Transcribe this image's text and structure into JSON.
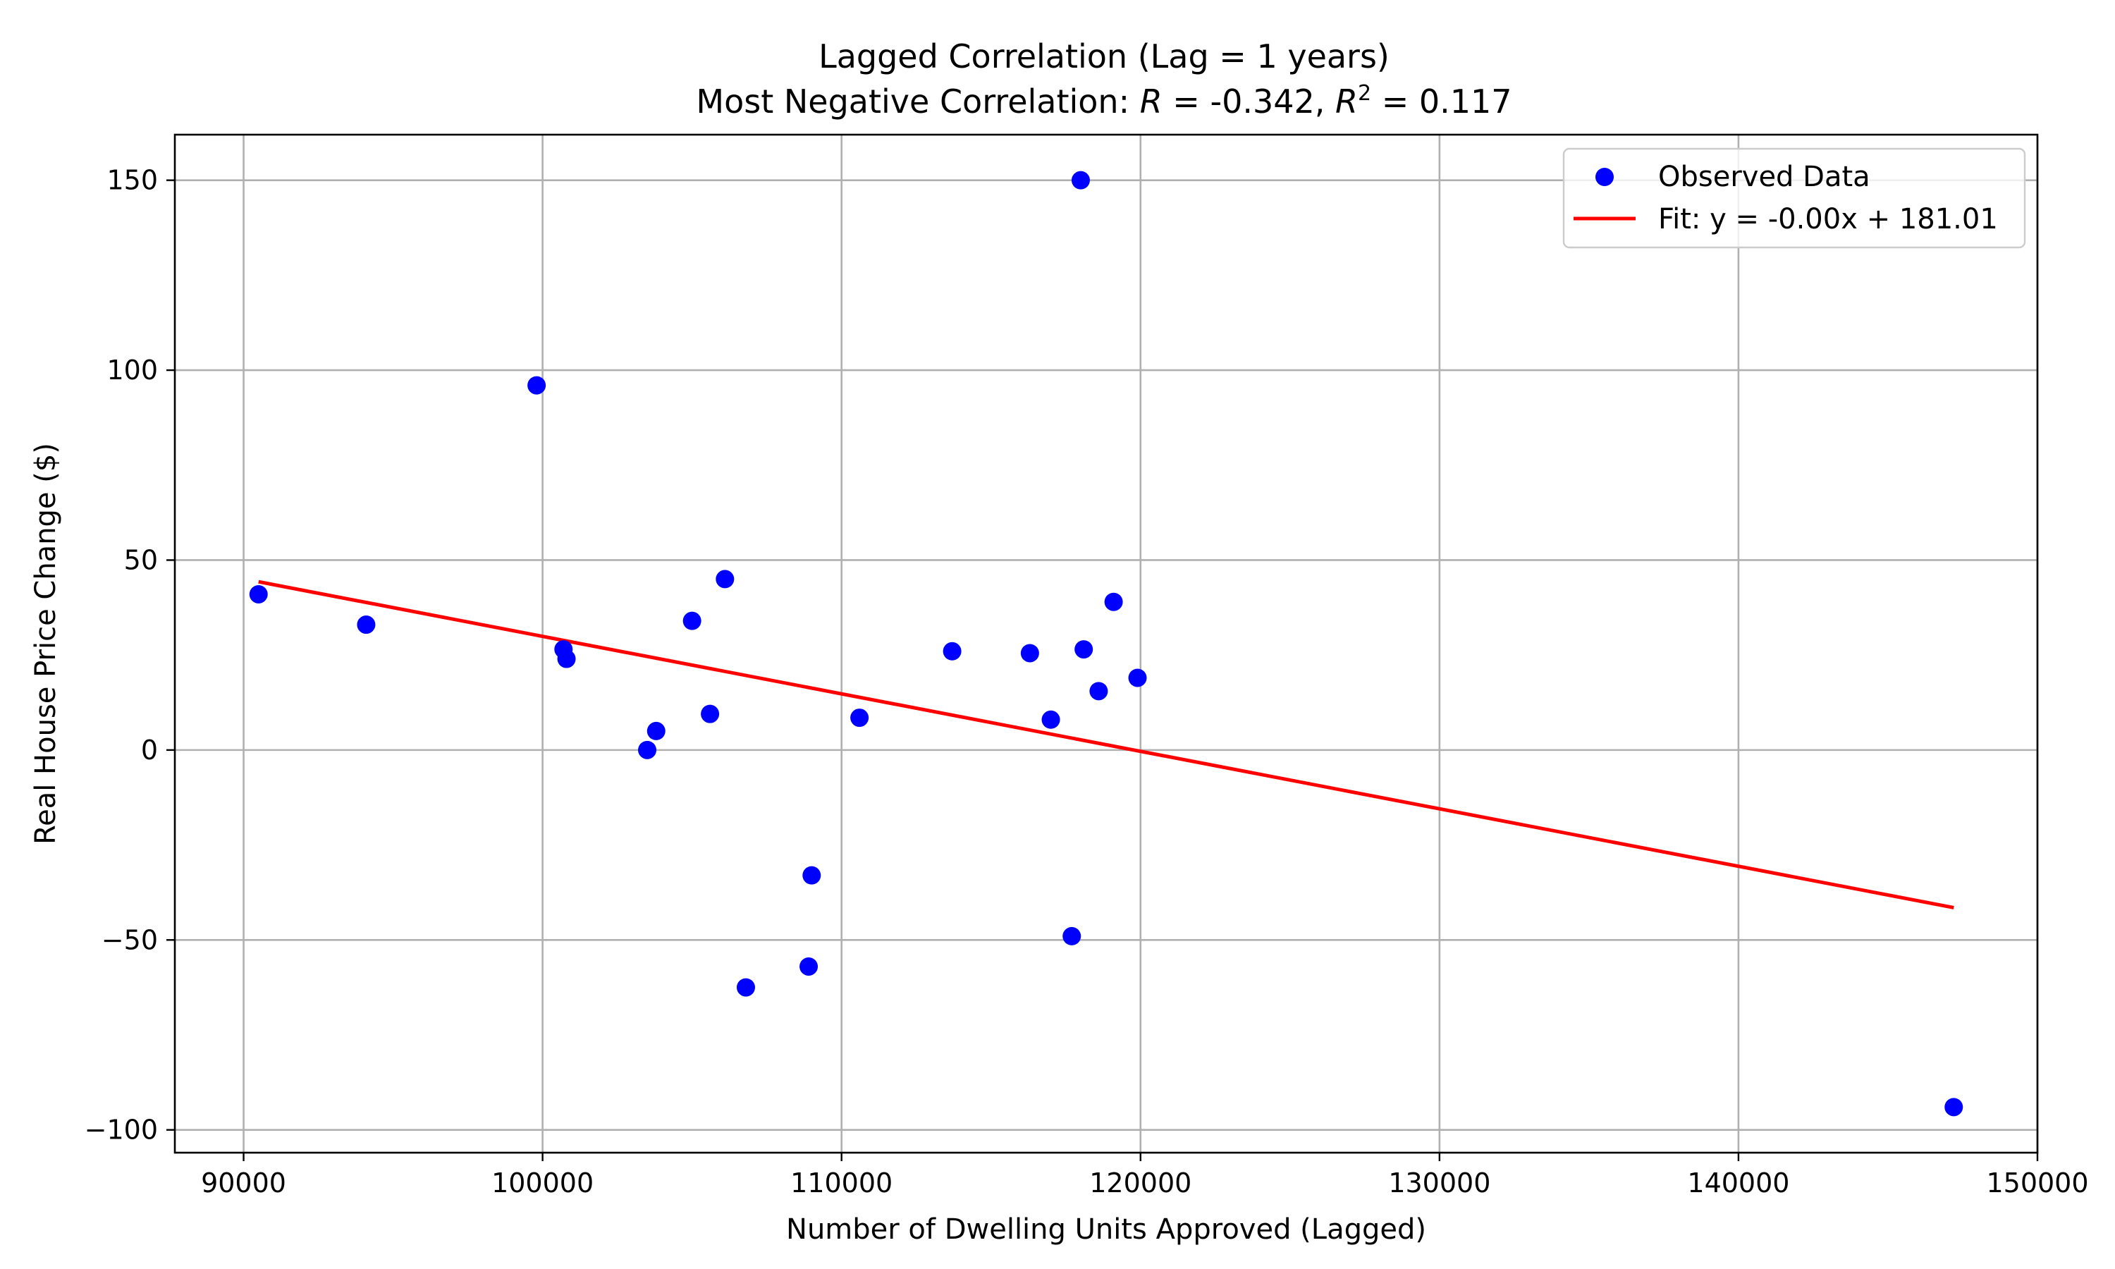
{
  "chart_data": {
    "type": "scatter",
    "title_line1": "Lagged Correlation (Lag = 1 years)",
    "title_line2": {
      "prefix": "Most Negative Correlation: ",
      "r_symbol": "R",
      "r_text": " = -0.342, ",
      "r2_symbol": "R",
      "r2_superscript": "2",
      "r2_text": " = 0.117"
    },
    "xlabel": "Number of Dwelling Units Approved (Lagged)",
    "ylabel": "Real House Price Change ($)",
    "xlim": [
      87700,
      150000
    ],
    "ylim": [
      -106,
      162
    ],
    "xticks": [
      90000,
      100000,
      110000,
      120000,
      130000,
      140000,
      150000
    ],
    "yticks": [
      -100,
      -50,
      0,
      50,
      100,
      150
    ],
    "xtick_labels": [
      "90000",
      "100000",
      "110000",
      "120000",
      "130000",
      "140000",
      "150000"
    ],
    "ytick_labels": [
      "−100",
      "−50",
      "0",
      "50",
      "100",
      "150"
    ],
    "grid": true,
    "legend_position": "top-right",
    "legend": [
      "Observed Data",
      "Fit: y = -0.00x + 181.01"
    ],
    "colors": {
      "points": "#0000ff",
      "fit_line": "#ff0000",
      "grid": "#b0b0b0",
      "axes": "#000000"
    },
    "series": [
      {
        "name": "Observed Data",
        "kind": "scatter",
        "points": [
          [
            90500,
            41
          ],
          [
            94100,
            33
          ],
          [
            99800,
            96
          ],
          [
            100700,
            26.5
          ],
          [
            100800,
            24
          ],
          [
            103500,
            0
          ],
          [
            103800,
            5
          ],
          [
            105000,
            34
          ],
          [
            105600,
            9.5
          ],
          [
            106100,
            45
          ],
          [
            106800,
            -62.5
          ],
          [
            108900,
            -57
          ],
          [
            109000,
            -33
          ],
          [
            110600,
            8.5
          ],
          [
            113700,
            26
          ],
          [
            116300,
            25.5
          ],
          [
            117000,
            8
          ],
          [
            117700,
            -49
          ],
          [
            118000,
            150
          ],
          [
            118100,
            26.5
          ],
          [
            118600,
            15.5
          ],
          [
            119100,
            39
          ],
          [
            119900,
            19
          ],
          [
            147200,
            -94
          ]
        ]
      },
      {
        "name": "Fit: y = -0.00x + 181.01",
        "kind": "line",
        "points": [
          [
            90500,
            44.3
          ],
          [
            147200,
            -41.5
          ]
        ]
      }
    ]
  }
}
